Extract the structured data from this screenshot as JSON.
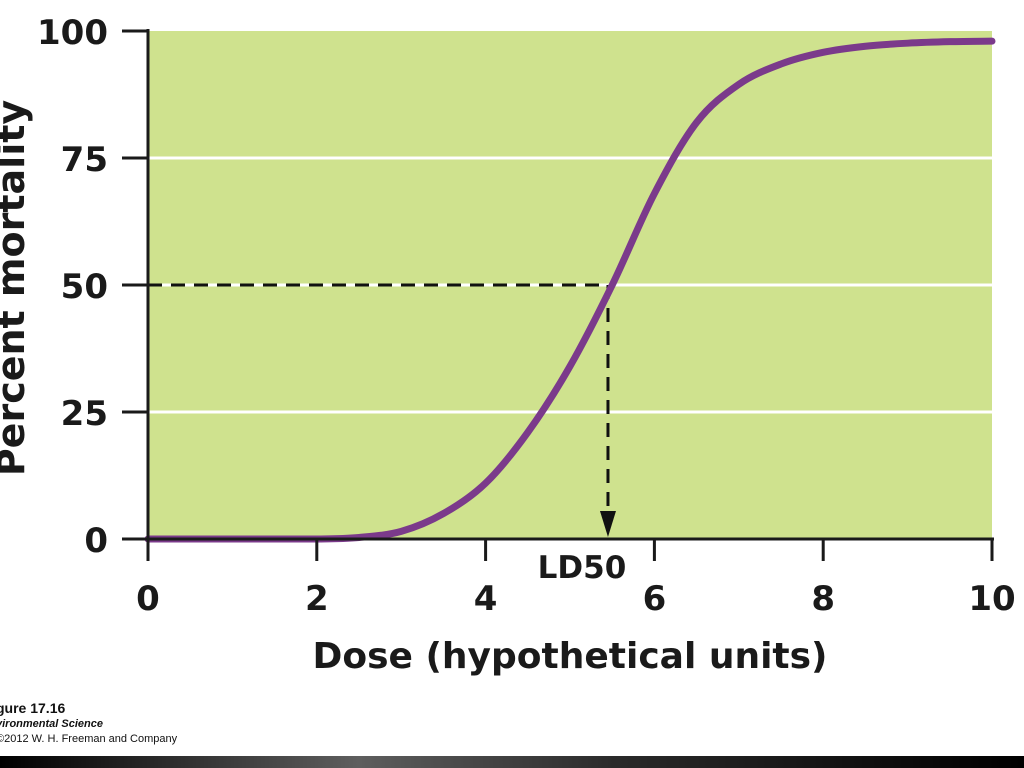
{
  "colors": {
    "plot_background": "#cfe28e",
    "curve": "#7b3a8b",
    "gridline": "#ffffff",
    "axis": "#1a1a1a",
    "dashed_guide": "#111111"
  },
  "chart_data": {
    "type": "line",
    "title": "",
    "xlabel": "Dose (hypothetical units)",
    "ylabel": "Percent mortality",
    "xlim": [
      0,
      10
    ],
    "ylim": [
      0,
      100
    ],
    "xticks": [
      0,
      2,
      4,
      6,
      8,
      10
    ],
    "yticks": [
      0,
      25,
      50,
      75,
      100
    ],
    "grid": "horizontal",
    "series": [
      {
        "x": [
          0,
          1,
          2,
          2.5,
          3,
          3.5,
          4,
          4.5,
          5,
          5.5,
          6,
          6.5,
          7,
          7.5,
          8,
          8.5,
          9,
          9.5,
          10
        ],
        "y": [
          0,
          0,
          0,
          0.3,
          1.5,
          5,
          11,
          21,
          34,
          50,
          68,
          82,
          89.5,
          93.5,
          95.8,
          97,
          97.6,
          97.9,
          98
        ]
      }
    ],
    "annotations": [
      {
        "label": "LD50",
        "x": 5.45,
        "y": 50
      }
    ]
  },
  "caption": {
    "figure": "gure 17.16",
    "book": "vironmental Science",
    "copyright": "2012 W. H. Freeman and Company"
  }
}
